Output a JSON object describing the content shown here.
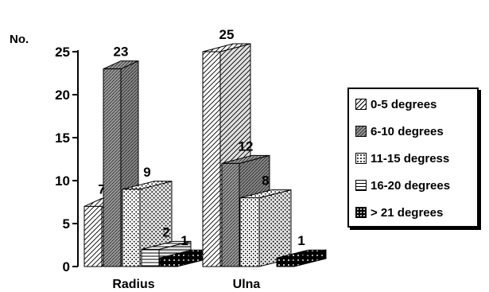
{
  "chart_data": {
    "type": "bar",
    "ylabel": "No.",
    "categories": [
      "Radius",
      "Ulna"
    ],
    "ylim": [
      0,
      25
    ],
    "yticks": [
      "0",
      "5",
      "10",
      "15",
      "20",
      "25"
    ],
    "legend_position": "right",
    "grid": false,
    "series": [
      {
        "name": "0-5 degrees",
        "values": [
          7,
          25
        ],
        "data_labels": [
          "7",
          "25"
        ]
      },
      {
        "name": "6-10 degrees",
        "values": [
          23,
          12
        ],
        "data_labels": [
          "23",
          "12"
        ]
      },
      {
        "name": "11-15 degress",
        "values": [
          9,
          8
        ],
        "data_labels": [
          "9",
          "8"
        ]
      },
      {
        "name": "16-20 degrees",
        "values": [
          2,
          0
        ],
        "data_labels": [
          "2",
          ""
        ]
      },
      {
        "name": "> 21 degrees",
        "values": [
          1,
          1
        ],
        "data_labels": [
          "1",
          "1"
        ]
      }
    ]
  }
}
